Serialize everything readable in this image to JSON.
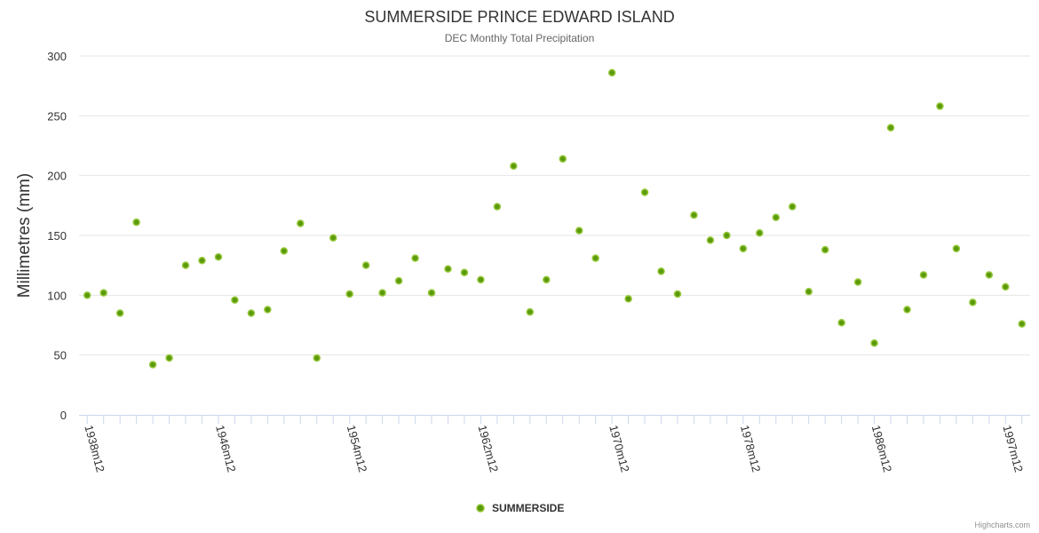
{
  "chart_data": {
    "type": "scatter",
    "title": "SUMMERSIDE PRINCE EDWARD ISLAND",
    "subtitle": "DEC Monthly Total Precipitation",
    "xlabel": "",
    "ylabel": "Millimetres (mm)",
    "ylim": [
      0,
      300
    ],
    "yticks": [
      0,
      50,
      100,
      150,
      200,
      250,
      300
    ],
    "grid": true,
    "legend_position": "bottom-center",
    "categories": [
      "1938m12",
      "1939m12",
      "1940m12",
      "1941m12",
      "1942m12",
      "1943m12",
      "1944m12",
      "1945m12",
      "1946m12",
      "1947m12",
      "1948m12",
      "1949m12",
      "1950m12",
      "1951m12",
      "1952m12",
      "1953m12",
      "1954m12",
      "1955m12",
      "1956m12",
      "1957m12",
      "1958m12",
      "1959m12",
      "1960m12",
      "1961m12",
      "1962m12",
      "1963m12",
      "1964m12",
      "1965m12",
      "1966m12",
      "1967m12",
      "1968m12",
      "1969m12",
      "1970m12",
      "1971m12",
      "1972m12",
      "1973m12",
      "1974m12",
      "1975m12",
      "1976m12",
      "1977m12",
      "1978m12",
      "1979m12",
      "1980m12",
      "1981m12",
      "1982m12",
      "1983m12",
      "1984m12",
      "1985m12",
      "1986m12",
      "1987m12",
      "1988m12",
      "1989m12",
      "1990m12",
      "1991m12",
      "1992m12",
      "1993m12",
      "1997m12",
      "1998m12"
    ],
    "label_every": 8,
    "series": [
      {
        "name": "SUMMERSIDE",
        "color": "#5b9a0a",
        "border": "#96c83c",
        "values": [
          100,
          102,
          85,
          161,
          42,
          47.5,
          125,
          129,
          132,
          96,
          85,
          88,
          137,
          160,
          47.5,
          148,
          101,
          125,
          102,
          112,
          131,
          102,
          122,
          119,
          113,
          174,
          208,
          86,
          113,
          214,
          154,
          131,
          286,
          97,
          186,
          120,
          101,
          167,
          146,
          150,
          139,
          152,
          165,
          174,
          103,
          138,
          77,
          111,
          60,
          240,
          88,
          117,
          258,
          139,
          94,
          117,
          107,
          76
        ]
      }
    ],
    "credits": "Highcharts.com"
  }
}
